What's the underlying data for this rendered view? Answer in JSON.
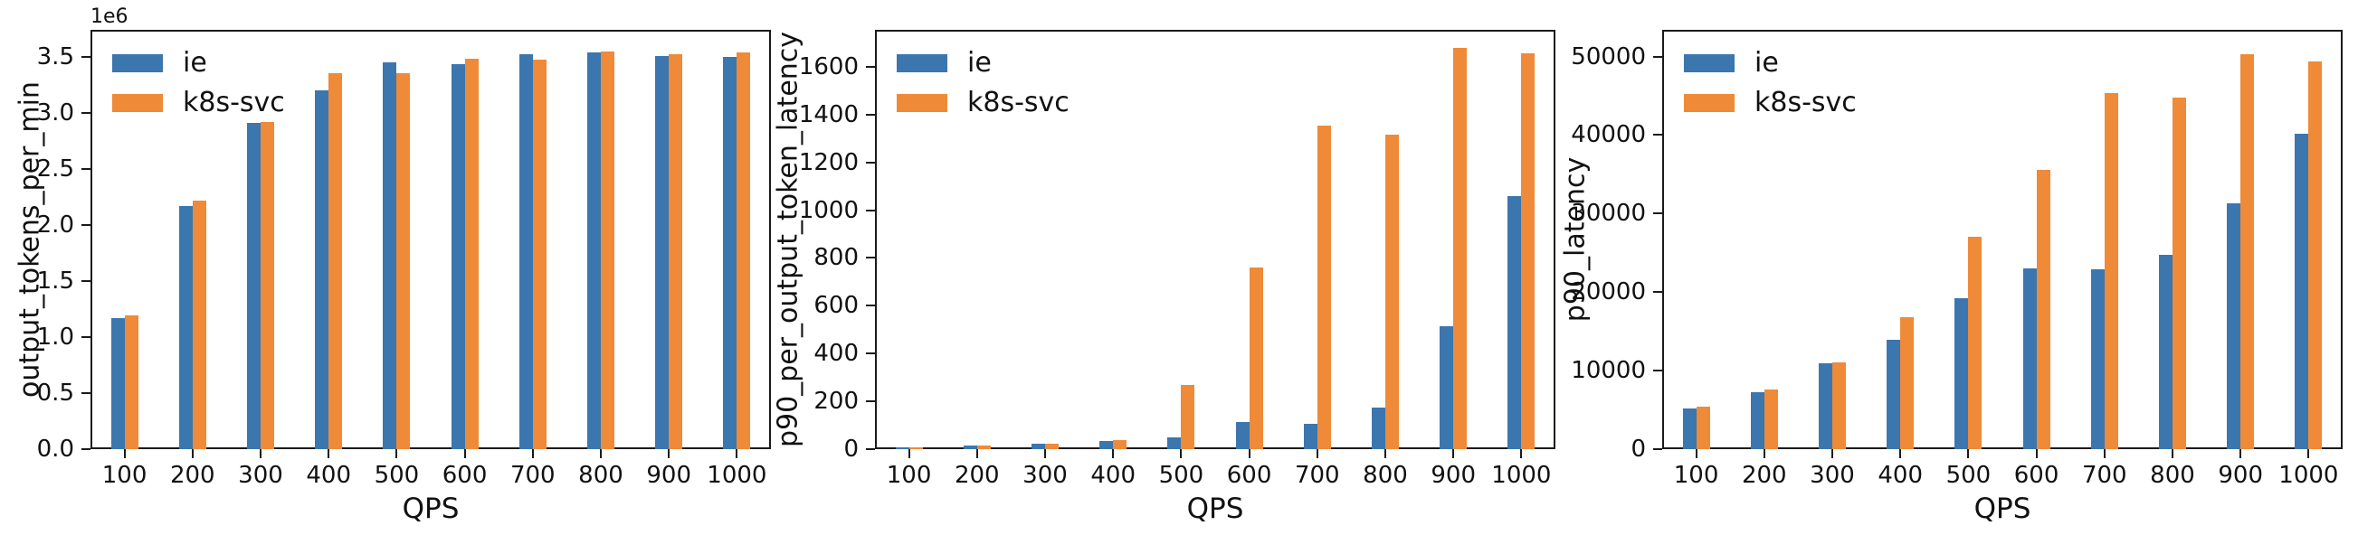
{
  "figure": {
    "background": "#ffffff"
  },
  "colors": {
    "ie": "#3b76af",
    "k8s_svc": "#ee8a38",
    "axis": "#1a1a1a"
  },
  "chart_data": [
    {
      "type": "bar",
      "title": "",
      "xlabel": "QPS",
      "ylabel": "output_tokens_per_min",
      "offset_text": "1e6",
      "grid": false,
      "legend_position": "upper left",
      "categories": [
        "100",
        "200",
        "300",
        "400",
        "500",
        "600",
        "700",
        "800",
        "900",
        "1000"
      ],
      "series": [
        {
          "name": "ie",
          "color": "#3b76af",
          "values": [
            1170000,
            2170000,
            2910000,
            3200000,
            3450000,
            3430000,
            3520000,
            3540000,
            3510000,
            3500000
          ]
        },
        {
          "name": "k8s-svc",
          "color": "#ee8a38",
          "values": [
            1190000,
            2220000,
            2920000,
            3350000,
            3350000,
            3480000,
            3470000,
            3550000,
            3520000,
            3540000
          ]
        }
      ],
      "ylim": [
        0,
        3740000
      ],
      "yticks": [
        0,
        500000,
        1000000,
        1500000,
        2000000,
        2500000,
        3000000,
        3500000
      ],
      "ytick_labels": [
        "0.0",
        "0.5",
        "1.0",
        "1.5",
        "2.0",
        "2.5",
        "3.0",
        "3.5"
      ]
    },
    {
      "type": "bar",
      "title": "",
      "xlabel": "QPS",
      "ylabel": "p90_per_output_token_latency",
      "offset_text": "",
      "grid": false,
      "legend_position": "upper left",
      "categories": [
        "100",
        "200",
        "300",
        "400",
        "500",
        "600",
        "700",
        "800",
        "900",
        "1000"
      ],
      "series": [
        {
          "name": "ie",
          "color": "#3b76af",
          "values": [
            8,
            15,
            22,
            33,
            48,
            115,
            105,
            175,
            515,
            1060
          ]
        },
        {
          "name": "k8s-svc",
          "color": "#ee8a38",
          "values": [
            9,
            16,
            23,
            38,
            270,
            760,
            1355,
            1315,
            1680,
            1655
          ]
        }
      ],
      "ylim": [
        0,
        1755
      ],
      "yticks": [
        0,
        200,
        400,
        600,
        800,
        1000,
        1200,
        1400,
        1600
      ],
      "ytick_labels": [
        "0",
        "200",
        "400",
        "600",
        "800",
        "1000",
        "1200",
        "1400",
        "1600"
      ]
    },
    {
      "type": "bar",
      "title": "",
      "xlabel": "QPS",
      "ylabel": "p90_latency",
      "offset_text": "",
      "grid": false,
      "legend_position": "upper left",
      "categories": [
        "100",
        "200",
        "300",
        "400",
        "500",
        "600",
        "700",
        "800",
        "900",
        "1000"
      ],
      "series": [
        {
          "name": "ie",
          "color": "#3b76af",
          "values": [
            5200,
            7300,
            10900,
            13900,
            19200,
            23000,
            22900,
            24700,
            31300,
            40200
          ]
        },
        {
          "name": "k8s-svc",
          "color": "#ee8a38",
          "values": [
            5400,
            7600,
            11100,
            16800,
            27100,
            35600,
            45300,
            44800,
            50300,
            49400
          ]
        }
      ],
      "ylim": [
        0,
        53400
      ],
      "yticks": [
        0,
        10000,
        20000,
        30000,
        40000,
        50000
      ],
      "ytick_labels": [
        "0",
        "10000",
        "20000",
        "30000",
        "40000",
        "50000"
      ]
    }
  ]
}
